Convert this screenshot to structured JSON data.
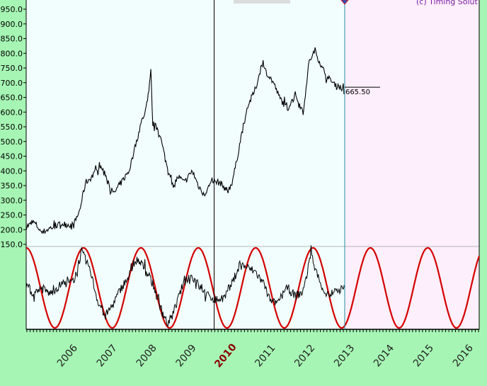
{
  "copyright": "(c) Timing Solut",
  "colors": {
    "background": "#a6f5b4",
    "plot": "#f2fefe",
    "projection": "#fdeffc",
    "price_line": "#000000",
    "cycle_line": "#d40000",
    "current_bar": "#2a8fa0",
    "copyright": "#7b1fa2",
    "highlight_year": "#8b0000"
  },
  "chart_data": {
    "type": "line",
    "title": "",
    "price_panel": {
      "ylim": [
        150,
        950
      ],
      "y_tick_labels": [
        "950.0",
        "900.0",
        "850.0",
        "800.0",
        "750.0",
        "700.0",
        "650.0",
        "600.0",
        "550.0",
        "500.0",
        "450.0",
        "400.0",
        "350.0",
        "300.0",
        "250.0",
        "200.0",
        "150.0"
      ],
      "y_tick_values": [
        950,
        900,
        850,
        800,
        750,
        700,
        650,
        600,
        550,
        500,
        450,
        400,
        350,
        300,
        250,
        200,
        150
      ],
      "last_price_label": "665.50",
      "last_price": 665.5,
      "series": [
        {
          "points": [
            [
              2005.4,
              210
            ],
            [
              2005.6,
              225
            ],
            [
              2005.8,
              190
            ],
            [
              2006.0,
              205
            ],
            [
              2006.3,
              220
            ],
            [
              2006.6,
              215
            ],
            [
              2006.75,
              265
            ],
            [
              2006.9,
              360
            ],
            [
              2007.1,
              385
            ],
            [
              2007.25,
              420
            ],
            [
              2007.4,
              390
            ],
            [
              2007.6,
              320
            ],
            [
              2007.8,
              360
            ],
            [
              2008.0,
              400
            ],
            [
              2008.15,
              480
            ],
            [
              2008.3,
              560
            ],
            [
              2008.45,
              620
            ],
            [
              2008.55,
              740
            ],
            [
              2008.6,
              560
            ],
            [
              2008.75,
              540
            ],
            [
              2008.95,
              420
            ],
            [
              2009.1,
              350
            ],
            [
              2009.25,
              380
            ],
            [
              2009.4,
              360
            ],
            [
              2009.6,
              400
            ],
            [
              2009.75,
              350
            ],
            [
              2009.9,
              320
            ],
            [
              2010.1,
              365
            ],
            [
              2010.3,
              360
            ],
            [
              2010.5,
              330
            ],
            [
              2010.6,
              360
            ],
            [
              2010.7,
              420
            ],
            [
              2010.85,
              530
            ],
            [
              2011.0,
              620
            ],
            [
              2011.2,
              680
            ],
            [
              2011.35,
              760
            ],
            [
              2011.5,
              730
            ],
            [
              2011.65,
              700
            ],
            [
              2011.8,
              650
            ],
            [
              2012.0,
              610
            ],
            [
              2012.2,
              660
            ],
            [
              2012.4,
              600
            ],
            [
              2012.55,
              770
            ],
            [
              2012.7,
              810
            ],
            [
              2012.85,
              760
            ],
            [
              2013.0,
              720
            ],
            [
              2013.15,
              700
            ],
            [
              2013.3,
              690
            ],
            [
              2013.45,
              665.5
            ]
          ]
        }
      ]
    },
    "oscillator_panel": {
      "series": [
        {
          "points": [
            [
              2005.4,
              0.1
            ],
            [
              2005.6,
              -0.2
            ],
            [
              2005.8,
              0.0
            ],
            [
              2006.0,
              -0.15
            ],
            [
              2006.3,
              0.1
            ],
            [
              2006.6,
              0.15
            ],
            [
              2006.8,
              0.9
            ],
            [
              2007.0,
              0.5
            ],
            [
              2007.2,
              -0.3
            ],
            [
              2007.4,
              -0.7
            ],
            [
              2007.6,
              -0.4
            ],
            [
              2007.8,
              0.0
            ],
            [
              2008.0,
              0.3
            ],
            [
              2008.2,
              0.7
            ],
            [
              2008.4,
              0.5
            ],
            [
              2008.6,
              0.1
            ],
            [
              2008.8,
              -0.5
            ],
            [
              2009.0,
              -0.95
            ],
            [
              2009.2,
              -0.4
            ],
            [
              2009.4,
              0.2
            ],
            [
              2009.6,
              0.3
            ],
            [
              2009.8,
              0.0
            ],
            [
              2010.0,
              -0.2
            ],
            [
              2010.2,
              -0.3
            ],
            [
              2010.4,
              -0.25
            ],
            [
              2010.6,
              0.1
            ],
            [
              2010.8,
              0.6
            ],
            [
              2011.0,
              0.5
            ],
            [
              2011.2,
              0.4
            ],
            [
              2011.4,
              0.1
            ],
            [
              2011.6,
              -0.4
            ],
            [
              2011.8,
              -0.3
            ],
            [
              2012.0,
              0.0
            ],
            [
              2012.2,
              -0.2
            ],
            [
              2012.4,
              -0.1
            ],
            [
              2012.6,
              0.85
            ],
            [
              2012.8,
              0.2
            ],
            [
              2013.0,
              -0.2
            ],
            [
              2013.2,
              -0.1
            ],
            [
              2013.45,
              0.0
            ]
          ]
        },
        {
          "period": 1.45,
          "peak": 2006.85,
          "x_range": [
            2005.4,
            2016.85
          ]
        }
      ]
    },
    "x_axis": {
      "xlim": [
        2005.4,
        2016.85
      ],
      "tick_labels": [
        "2006",
        "2007",
        "2008",
        "2009",
        "2010",
        "2011",
        "2012",
        "2013",
        "2014",
        "2015",
        "2016"
      ],
      "tick_values": [
        2006,
        2007,
        2008,
        2009,
        2010,
        2011,
        2012,
        2013,
        2014,
        2015,
        2016
      ],
      "highlighted": "2010"
    },
    "markers": {
      "cursor_line": 2010.15,
      "current_bar": 2013.45
    }
  }
}
